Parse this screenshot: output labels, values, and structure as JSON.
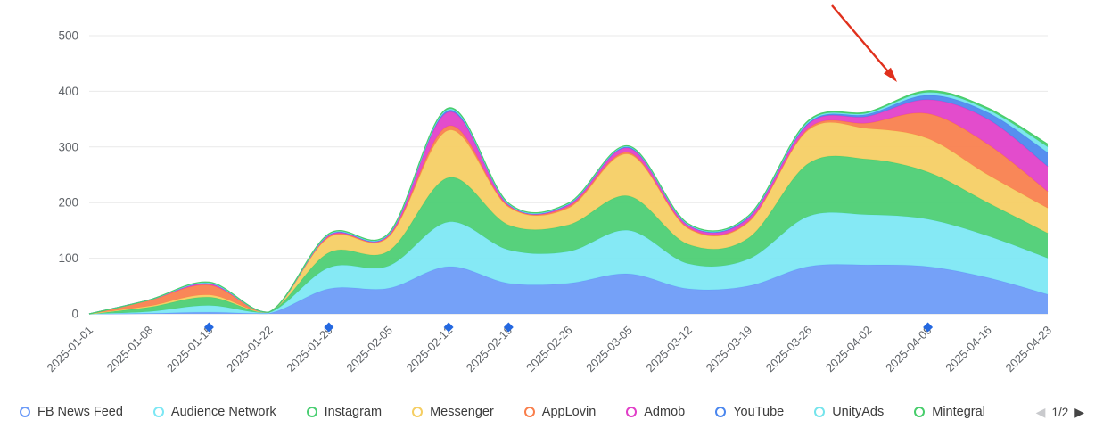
{
  "chart_data": {
    "type": "area",
    "stacked": true,
    "title": "",
    "xlabel": "",
    "ylabel": "",
    "x": [
      "2025-01-01",
      "2025-01-08",
      "2025-01-15",
      "2025-01-22",
      "2025-01-29",
      "2025-02-05",
      "2025-02-12",
      "2025-02-19",
      "2025-02-26",
      "2025-03-05",
      "2025-03-12",
      "2025-03-19",
      "2025-03-26",
      "2025-04-02",
      "2025-04-09",
      "2025-04-16",
      "2025-04-23"
    ],
    "series": [
      {
        "name": "FB News Feed",
        "color": "#6b9af8",
        "values": [
          0,
          1,
          3,
          1,
          45,
          46,
          85,
          55,
          55,
          72,
          45,
          50,
          85,
          88,
          85,
          65,
          35
        ]
      },
      {
        "name": "Audience Network",
        "color": "#7ce7f4",
        "values": [
          0,
          3,
          12,
          1,
          38,
          40,
          80,
          60,
          57,
          78,
          45,
          48,
          90,
          90,
          85,
          75,
          65
        ]
      },
      {
        "name": "Instagram",
        "color": "#4ace72",
        "values": [
          0,
          8,
          15,
          1,
          27,
          27,
          80,
          45,
          48,
          62,
          35,
          38,
          95,
          100,
          85,
          60,
          45
        ]
      },
      {
        "name": "Messenger",
        "color": "#f5ce62",
        "values": [
          0,
          2,
          4,
          0,
          27,
          25,
          85,
          32,
          30,
          75,
          28,
          28,
          60,
          55,
          60,
          50,
          45
        ]
      },
      {
        "name": "AppLovin",
        "color": "#f97e4b",
        "values": [
          0,
          10,
          18,
          0,
          2,
          2,
          8,
          2,
          3,
          3,
          2,
          2,
          3,
          10,
          45,
          55,
          30
        ]
      },
      {
        "name": "Admob",
        "color": "#e13ec8",
        "values": [
          0,
          1,
          2,
          0,
          2,
          2,
          25,
          2,
          3,
          8,
          4,
          6,
          8,
          12,
          25,
          45,
          45
        ]
      },
      {
        "name": "YouTube",
        "color": "#4a86ee",
        "values": [
          0,
          0,
          1,
          0,
          1,
          1,
          3,
          1,
          1,
          2,
          1,
          2,
          2,
          4,
          8,
          12,
          25
        ]
      },
      {
        "name": "UnityAds",
        "color": "#74e4ec",
        "values": [
          0,
          0,
          1,
          0,
          1,
          1,
          2,
          1,
          1,
          1,
          1,
          1,
          2,
          2,
          5,
          5,
          10
        ]
      },
      {
        "name": "Mintegral",
        "color": "#47cd6b",
        "values": [
          0,
          0,
          1,
          0,
          1,
          1,
          2,
          1,
          1,
          1,
          1,
          1,
          2,
          2,
          3,
          3,
          5
        ]
      }
    ],
    "ylim": [
      0,
      500
    ],
    "y_ticks": [
      0,
      100,
      200,
      300,
      400,
      500
    ],
    "grid": true,
    "grid_color": "#e9e9e9",
    "baseline_color": "#dcdcdc",
    "axis_label_color": "#5f6368",
    "legend_position": "bottom",
    "marker_dates": [
      "2025-01-15",
      "2025-01-29",
      "2025-02-12",
      "2025-02-19",
      "2025-04-09"
    ],
    "marker_color": "#2468e0",
    "annotation_arrow": {
      "color": "#e0301c",
      "from": [
        933,
        6
      ],
      "to": [
        1006,
        92
      ]
    }
  },
  "legend": {
    "page_indicator": "1/2",
    "prev_icon": "◀",
    "next_icon": "▶"
  }
}
